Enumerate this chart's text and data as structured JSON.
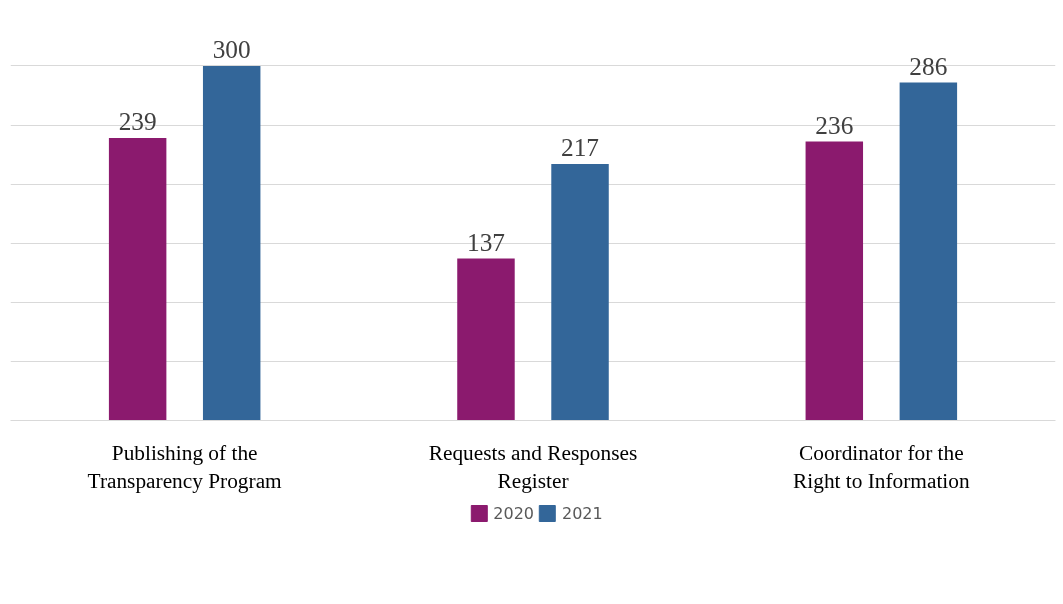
{
  "chart_data": {
    "type": "bar",
    "categories": [
      "Publishing of the Transparency Program",
      "Requests and Responses Register",
      "Coordinator for the Right to Information"
    ],
    "series": [
      {
        "name": "2020",
        "color": "#8b1a6e",
        "values": [
          239,
          137,
          236
        ]
      },
      {
        "name": "2021",
        "color": "#336699",
        "values": [
          300,
          217,
          286
        ]
      }
    ],
    "tick_labels": "x",
    "grid": "y",
    "legend": "bottom",
    "data_labels": true
  }
}
